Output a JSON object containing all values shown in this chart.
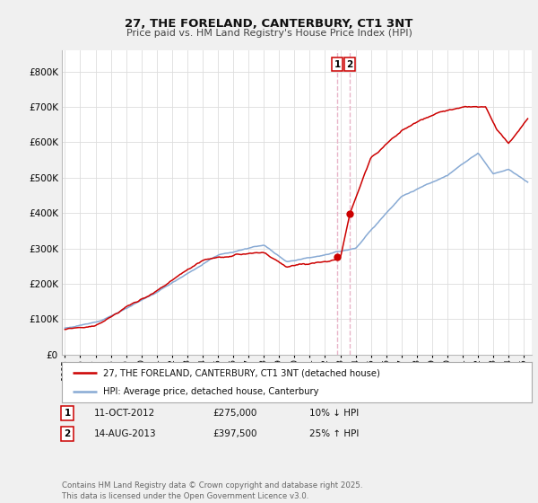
{
  "title": "27, THE FORELAND, CANTERBURY, CT1 3NT",
  "subtitle": "Price paid vs. HM Land Registry's House Price Index (HPI)",
  "y_values": [
    0,
    100000,
    200000,
    300000,
    400000,
    500000,
    600000,
    700000,
    800000
  ],
  "ylim": [
    0,
    860000
  ],
  "xlim_start": 1994.8,
  "xlim_end": 2025.5,
  "red_line_color": "#cc0000",
  "blue_line_color": "#88aad4",
  "sale1_date": 2012.79,
  "sale1_price": 275000,
  "sale2_date": 2013.62,
  "sale2_price": 397500,
  "vline_color": "#e8b4c8",
  "dot_color": "#cc0000",
  "legend1_label": "27, THE FORELAND, CANTERBURY, CT1 3NT (detached house)",
  "legend2_label": "HPI: Average price, detached house, Canterbury",
  "table_row1": [
    "1",
    "11-OCT-2012",
    "£275,000",
    "10% ↓ HPI"
  ],
  "table_row2": [
    "2",
    "14-AUG-2013",
    "£397,500",
    "25% ↑ HPI"
  ],
  "footer": "Contains HM Land Registry data © Crown copyright and database right 2025.\nThis data is licensed under the Open Government Licence v3.0.",
  "bg_color": "#f0f0f0",
  "plot_bg": "#ffffff",
  "grid_color": "#dddddd"
}
